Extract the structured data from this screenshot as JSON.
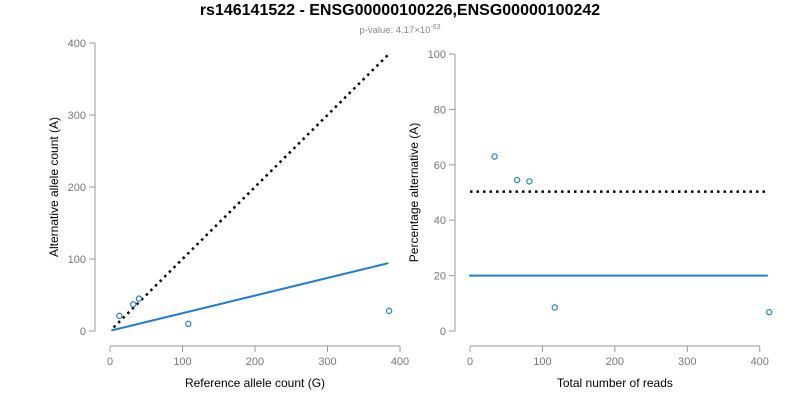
{
  "title": "rs146141522 - ENSG00000100226,ENSG00000100242",
  "subtitle": {
    "prefix": "p-value: 4.17×10",
    "exponent": "-63"
  },
  "colors": {
    "series": "#1f7fd8",
    "reference_line": "#000000"
  },
  "chart_data": [
    {
      "type": "scatter",
      "xlabel": "Reference allele count (G)",
      "ylabel": "Alternative allele count (A)",
      "xlim": [
        0,
        400
      ],
      "ylim": [
        0,
        400
      ],
      "xticks": [
        0,
        100,
        200,
        300,
        400
      ],
      "yticks": [
        0,
        100,
        200,
        300,
        400
      ],
      "points": [
        {
          "x": 13,
          "y": 21
        },
        {
          "x": 32,
          "y": 37
        },
        {
          "x": 40,
          "y": 45
        },
        {
          "x": 108,
          "y": 10
        },
        {
          "x": 385,
          "y": 28
        }
      ],
      "lines": [
        {
          "style": "dotted",
          "x": [
            5,
            383
          ],
          "y": [
            5,
            383
          ]
        },
        {
          "style": "solid",
          "x": [
            3,
            383
          ],
          "y": [
            1,
            94
          ]
        }
      ]
    },
    {
      "type": "scatter",
      "xlabel": "Total number of reads",
      "ylabel": "Percentage alternative (A)",
      "xlim": [
        0,
        410
      ],
      "ylim": [
        0,
        100
      ],
      "xticks": [
        0,
        100,
        200,
        300,
        400
      ],
      "yticks": [
        0,
        20,
        40,
        60,
        80,
        100
      ],
      "points": [
        {
          "x": 34,
          "y": 63
        },
        {
          "x": 65,
          "y": 54.5
        },
        {
          "x": 82,
          "y": 54
        },
        {
          "x": 117,
          "y": 8.5
        },
        {
          "x": 413,
          "y": 6.8
        }
      ],
      "lines": [
        {
          "style": "dotted",
          "x": [
            0,
            410
          ],
          "y": [
            50.3,
            50.3
          ]
        },
        {
          "style": "solid",
          "x": [
            0,
            410
          ],
          "y": [
            20,
            20
          ]
        }
      ]
    }
  ]
}
